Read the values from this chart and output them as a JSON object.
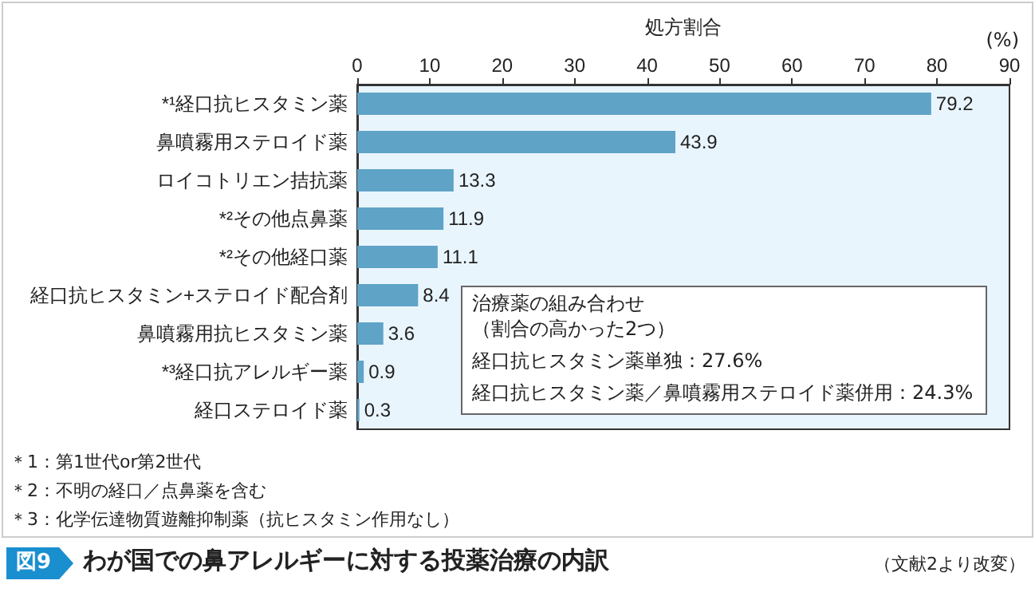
{
  "chart_data": {
    "type": "bar",
    "orientation": "horizontal",
    "title": "わが国での鼻アレルギーに対する投薬治療の内訳",
    "xlabel": "処方割合",
    "categories": [
      "*¹経口抗ヒスタミン薬",
      "鼻噴霧用ステロイド薬",
      "ロイコトリエン拮抗薬",
      "*²その他点鼻薬",
      "*²その他経口薬",
      "経口抗ヒスタミン+ステロイド配合剤",
      "鼻噴霧用抗ヒスタミン薬",
      "*³経口抗アレルギー薬",
      "経口ステロイド薬"
    ],
    "values": [
      79.2,
      43.9,
      13.3,
      11.9,
      11.1,
      8.4,
      3.6,
      0.9,
      0.3
    ],
    "color": "#5fa3c7",
    "data_labels": true,
    "grid": false,
    "xlim": [
      0,
      90
    ],
    "xticks": [
      0,
      10,
      20,
      30,
      40,
      50,
      60,
      70,
      80,
      90
    ],
    "annotations": [
      "図9",
      "(%)",
      "（文献2より改変）",
      "＊1：第1世代or第2世代",
      "＊2：不明の経口／点鼻薬を含む",
      "＊3：化学伝達物質遊離抑制薬（抗ヒスタミン作用なし）",
      "治療薬の組み合わせ",
      "（割合の高かった2つ）",
      "経口抗ヒスタミン薬単独：27.6%",
      "経口抗ヒスタミン薬／鼻噴霧用ステロイド薬併用：24.3%"
    ]
  }
}
